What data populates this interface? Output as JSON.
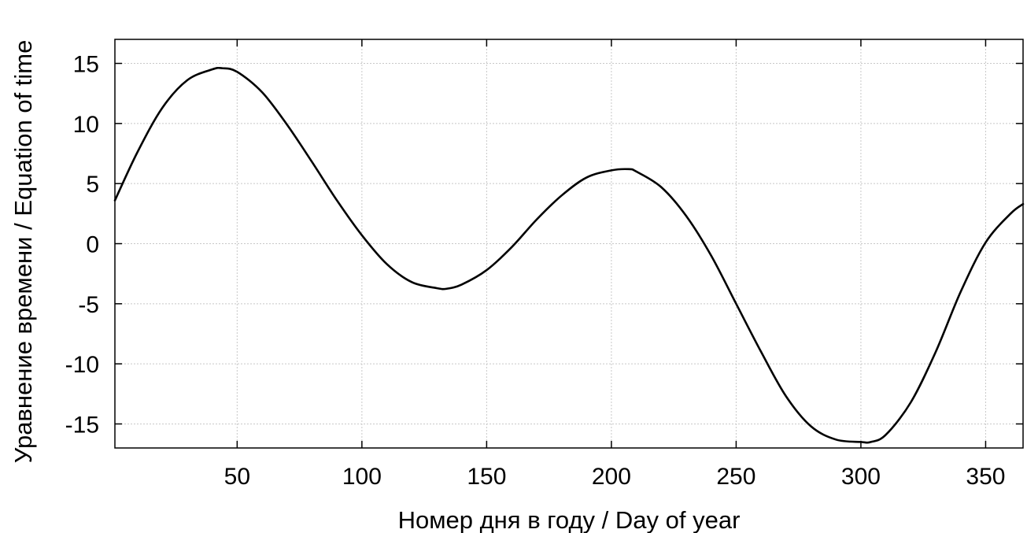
{
  "chart_data": {
    "type": "line",
    "title": "",
    "xlabel": "Номер дня в году / Day of year",
    "ylabel": "Уравнение времени / Equation of time",
    "xlim": [
      1,
      365
    ],
    "ylim": [
      -17,
      17
    ],
    "xticks": [
      50,
      100,
      150,
      200,
      250,
      300,
      350
    ],
    "yticks": [
      15,
      10,
      5,
      0,
      -5,
      -10,
      -15
    ],
    "grid": true,
    "legend": "none",
    "line_color": "#000000",
    "grid_color": "#c8c8c8",
    "series": [
      {
        "x": [
          1,
          10,
          20,
          30,
          40,
          44,
          50,
          60,
          70,
          80,
          90,
          100,
          110,
          120,
          130,
          134,
          140,
          150,
          160,
          170,
          180,
          190,
          200,
          207,
          210,
          220,
          230,
          240,
          250,
          260,
          270,
          280,
          290,
          300,
          304,
          310,
          320,
          330,
          340,
          350,
          360,
          365
        ],
        "y": [
          3.6,
          7.6,
          11.3,
          13.6,
          14.5,
          14.6,
          14.3,
          12.6,
          9.9,
          6.8,
          3.6,
          0.7,
          -1.7,
          -3.2,
          -3.7,
          -3.75,
          -3.4,
          -2.2,
          -0.3,
          2.0,
          4.0,
          5.5,
          6.1,
          6.2,
          6.0,
          4.7,
          2.3,
          -1.0,
          -5.0,
          -9.0,
          -12.7,
          -15.2,
          -16.3,
          -16.5,
          -16.5,
          -15.9,
          -13.2,
          -9.0,
          -4.0,
          0.1,
          2.5,
          3.3
        ]
      }
    ]
  }
}
